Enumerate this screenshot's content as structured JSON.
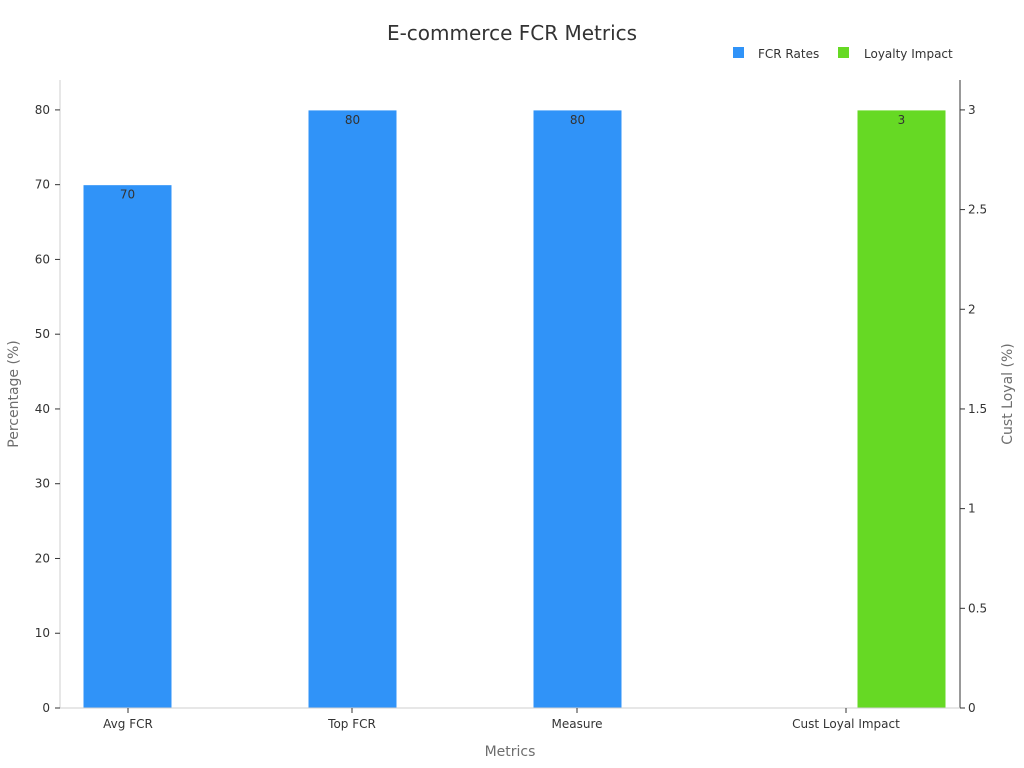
{
  "chart_data": {
    "type": "bar",
    "title": "E-commerce FCR Metrics",
    "xlabel": "Metrics",
    "ylabel": "Percentage (%)",
    "y2label": "Cust Loyal (%)",
    "categories": [
      "Avg FCR",
      "Top FCR",
      "Measure",
      "Cust Loyal Impact"
    ],
    "ylim": [
      0,
      84
    ],
    "y2lim": [
      0,
      3.15
    ],
    "yticks": [
      0,
      10,
      20,
      30,
      40,
      50,
      60,
      70,
      80
    ],
    "y2ticks": [
      0,
      0.5,
      1,
      1.5,
      2,
      2.5,
      3
    ],
    "y2tick_labels": [
      "0",
      "0.5",
      "1",
      "1.5",
      "2",
      "2.5",
      "3"
    ],
    "series": [
      {
        "name": "FCR Rates",
        "axis": "left",
        "color": "#3093f8",
        "values": [
          70,
          80,
          80,
          null
        ],
        "labels": [
          "70",
          "80",
          "80",
          ""
        ]
      },
      {
        "name": "Loyalty Impact",
        "axis": "right",
        "color": "#66d924",
        "values": [
          null,
          null,
          null,
          3
        ],
        "labels": [
          "",
          "",
          "",
          "3"
        ]
      }
    ],
    "legend": "top-right",
    "grid": false
  }
}
